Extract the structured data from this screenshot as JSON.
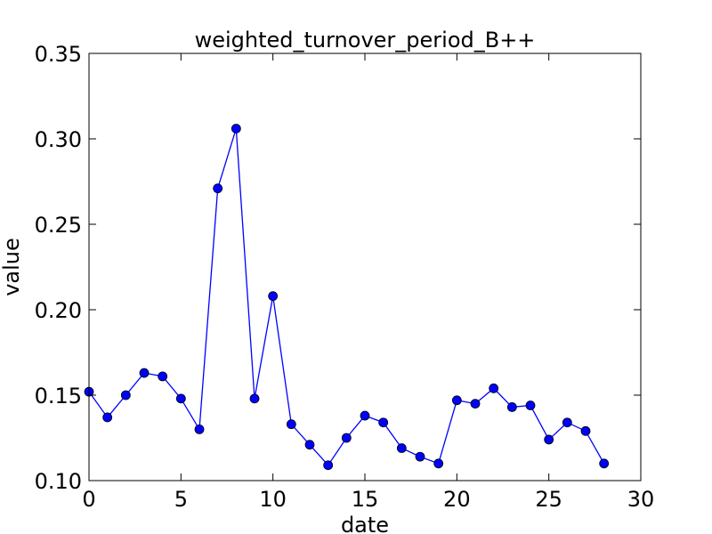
{
  "chart_data": {
    "type": "line",
    "title": "weighted_turnover_period_B++",
    "xlabel": "date",
    "ylabel": "value",
    "xlim": [
      0,
      30
    ],
    "ylim": [
      0.1,
      0.35
    ],
    "xticks": [
      0,
      5,
      10,
      15,
      20,
      25,
      30
    ],
    "xtick_labels": [
      "0",
      "5",
      "10",
      "15",
      "20",
      "25",
      "30"
    ],
    "yticks": [
      0.1,
      0.15,
      0.2,
      0.25,
      0.3,
      0.35
    ],
    "ytick_labels": [
      "0.10",
      "0.15",
      "0.20",
      "0.25",
      "0.30",
      "0.35"
    ],
    "grid": false,
    "legend": "none",
    "series": [
      {
        "color": "#0000ff",
        "marker": "circle",
        "x": [
          0,
          1,
          2,
          3,
          4,
          5,
          6,
          7,
          8,
          9,
          10,
          11,
          12,
          13,
          14,
          15,
          16,
          17,
          18,
          19,
          20,
          21,
          22,
          23,
          24,
          25,
          26,
          27,
          28
        ],
        "y": [
          0.152,
          0.137,
          0.15,
          0.163,
          0.161,
          0.148,
          0.13,
          0.271,
          0.306,
          0.148,
          0.208,
          0.133,
          0.121,
          0.109,
          0.125,
          0.138,
          0.134,
          0.119,
          0.114,
          0.11,
          0.147,
          0.145,
          0.154,
          0.143,
          0.144,
          0.124,
          0.134,
          0.129,
          0.11
        ]
      }
    ]
  }
}
